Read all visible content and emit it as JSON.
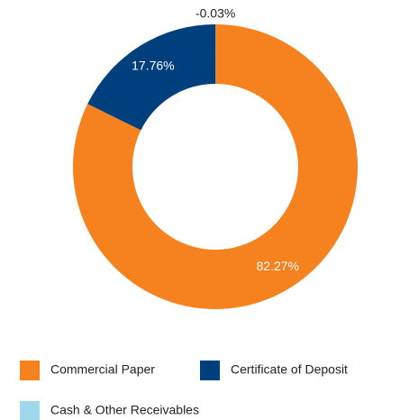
{
  "chart_data": {
    "type": "donut",
    "categories": [
      "Commercial Paper",
      "Certificate of Deposit",
      "Cash & Other Receivables"
    ],
    "values": [
      82.27,
      17.76,
      -0.03
    ],
    "value_labels": [
      "82.27%",
      "17.76%",
      "-0.03%"
    ],
    "colors": [
      "#f5821f",
      "#003f7d",
      "#9ed8ea"
    ],
    "legend": "bottom"
  }
}
